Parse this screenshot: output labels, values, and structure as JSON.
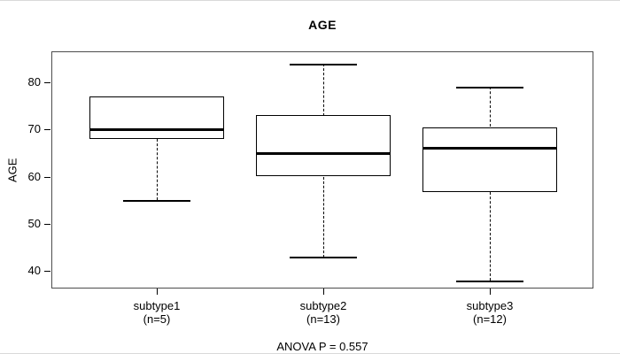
{
  "chart_data": {
    "type": "boxplot",
    "title": "AGE",
    "ylabel": "AGE",
    "annotation": "ANOVA P = 0.557",
    "categories": [
      "subtype1",
      "subtype2",
      "subtype3"
    ],
    "category_sublabels": [
      "(n=5)",
      "(n=13)",
      "(n=12)"
    ],
    "yticks": [
      40,
      50,
      60,
      70,
      80
    ],
    "ylim": [
      36.3,
      86.6
    ],
    "grid": false,
    "legend": false,
    "series": [
      {
        "name": "subtype1",
        "n": 5,
        "whisker_low": 55,
        "q1": 68,
        "median": 70,
        "q3": 77,
        "whisker_high": 77
      },
      {
        "name": "subtype2",
        "n": 13,
        "whisker_low": 43,
        "q1": 60,
        "median": 65,
        "q3": 73,
        "whisker_high": 84
      },
      {
        "name": "subtype3",
        "n": 12,
        "whisker_low": 38,
        "q1": 56.75,
        "median": 66,
        "q3": 70.5,
        "whisker_high": 79
      }
    ]
  },
  "colors": {
    "background": "#ffffff",
    "box_border": "#000000",
    "median": "#000000",
    "plot_border": "#4d4d4d",
    "text": "#000000"
  }
}
